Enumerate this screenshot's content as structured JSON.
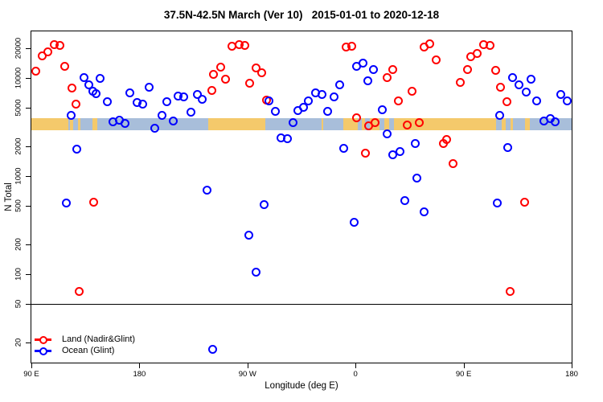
{
  "title": "37.5N-42.5N March (Ver 10)   2015-01-01 to 2020-12-18",
  "chart_data": {
    "type": "scatter",
    "title": "37.5N-42.5N March (Ver 10)   2015-01-01 to 2020-12-18",
    "xlabel": "Longitude (deg E)",
    "ylabel": "N Total",
    "xlim": [
      90,
      540
    ],
    "ylim": [
      12.5,
      30000
    ],
    "y_scale": "log",
    "grid": "off",
    "legend_position": "bottom-left",
    "x_ticks": [
      {
        "deg": 90,
        "label": "90 E"
      },
      {
        "deg": 180,
        "label": "180"
      },
      {
        "deg": 270,
        "label": "90 W"
      },
      {
        "deg": 360,
        "label": "0"
      },
      {
        "deg": 450,
        "label": "90 E"
      },
      {
        "deg": 540,
        "label": "180"
      }
    ],
    "y_ticks": [
      20,
      50,
      100,
      200,
      500,
      1000,
      2000,
      5000,
      10000,
      20000
    ],
    "series": [
      {
        "name": "Land (Nadir&Glint)",
        "color": "#ff0000",
        "marker": "open-circle",
        "points": [
          [
            94,
            11700
          ],
          [
            99,
            16800
          ],
          [
            104,
            18400
          ],
          [
            109,
            22000
          ],
          [
            114,
            21700
          ],
          [
            118,
            13100
          ],
          [
            124,
            7900
          ],
          [
            127,
            5400
          ],
          [
            130,
            67
          ],
          [
            142,
            540
          ],
          [
            240,
            7500
          ],
          [
            242,
            11000
          ],
          [
            248,
            12900
          ],
          [
            252,
            9800
          ],
          [
            257,
            21300
          ],
          [
            263,
            22000
          ],
          [
            268,
            21700
          ],
          [
            272,
            8800
          ],
          [
            277,
            12600
          ],
          [
            282,
            11400
          ],
          [
            286,
            6000
          ],
          [
            352,
            20600
          ],
          [
            357,
            21100
          ],
          [
            361,
            3900
          ],
          [
            368,
            1730
          ],
          [
            371,
            3250
          ],
          [
            376,
            3500
          ],
          [
            386,
            10100
          ],
          [
            391,
            12300
          ],
          [
            396,
            5900
          ],
          [
            403,
            3300
          ],
          [
            407,
            7400
          ],
          [
            413,
            3500
          ],
          [
            417,
            20600
          ],
          [
            422,
            22500
          ],
          [
            427,
            15400
          ],
          [
            433,
            2150
          ],
          [
            436,
            2380
          ],
          [
            441,
            1340
          ],
          [
            447,
            9100
          ],
          [
            453,
            12200
          ],
          [
            456,
            16600
          ],
          [
            461,
            17900
          ],
          [
            467,
            22000
          ],
          [
            472,
            21700
          ],
          [
            477,
            11900
          ],
          [
            481,
            8100
          ],
          [
            486,
            5700
          ],
          [
            489,
            67
          ],
          [
            501,
            540
          ]
        ]
      },
      {
        "name": "Ocean (Glint)",
        "color": "#0000ff",
        "marker": "open-circle",
        "points": [
          [
            119,
            530
          ],
          [
            123,
            4150
          ],
          [
            128,
            1900
          ],
          [
            134,
            10100
          ],
          [
            138,
            8550
          ],
          [
            141,
            7350
          ],
          [
            144,
            7000
          ],
          [
            147,
            9900
          ],
          [
            153,
            5750
          ],
          [
            158,
            3550
          ],
          [
            163,
            3700
          ],
          [
            168,
            3440
          ],
          [
            172,
            7100
          ],
          [
            178,
            5650
          ],
          [
            183,
            5400
          ],
          [
            188,
            8100
          ],
          [
            193,
            3100
          ],
          [
            199,
            4200
          ],
          [
            203,
            5700
          ],
          [
            208,
            3650
          ],
          [
            212,
            6550
          ],
          [
            217,
            6450
          ],
          [
            223,
            4500
          ],
          [
            228,
            6850
          ],
          [
            232,
            6050
          ],
          [
            236,
            720
          ],
          [
            241,
            17
          ],
          [
            271,
            250
          ],
          [
            277,
            105
          ],
          [
            284,
            510
          ],
          [
            288,
            5800
          ],
          [
            293,
            4560
          ],
          [
            298,
            2450
          ],
          [
            303,
            2430
          ],
          [
            308,
            3500
          ],
          [
            312,
            4700
          ],
          [
            317,
            5000
          ],
          [
            321,
            5800
          ],
          [
            327,
            7100
          ],
          [
            332,
            6850
          ],
          [
            337,
            4560
          ],
          [
            342,
            6450
          ],
          [
            347,
            8600
          ],
          [
            350,
            1920
          ],
          [
            359,
            340
          ],
          [
            361,
            13100
          ],
          [
            366,
            14300
          ],
          [
            370,
            9450
          ],
          [
            375,
            12300
          ],
          [
            382,
            4800
          ],
          [
            386,
            2700
          ],
          [
            391,
            1660
          ],
          [
            397,
            1790
          ],
          [
            401,
            560
          ],
          [
            410,
            2150
          ],
          [
            411,
            950
          ],
          [
            417,
            435
          ],
          [
            478,
            530
          ],
          [
            480,
            4200
          ],
          [
            487,
            1950
          ],
          [
            491,
            10100
          ],
          [
            496,
            8500
          ],
          [
            502,
            7250
          ],
          [
            506,
            9700
          ],
          [
            511,
            5800
          ],
          [
            517,
            3650
          ],
          [
            522,
            3850
          ],
          [
            526,
            3550
          ],
          [
            531,
            6850
          ],
          [
            536,
            5900
          ]
        ]
      }
    ]
  },
  "reference_line": {
    "value": 50,
    "color": "#000000"
  },
  "map_band": {
    "value_range": [
      2950,
      3900
    ],
    "land_color": "#f4c96b",
    "ocean_color": "#a8beda",
    "segments": [
      [
        90,
        121,
        "land"
      ],
      [
        121,
        122,
        "ocean"
      ],
      [
        122,
        125,
        "land"
      ],
      [
        125,
        129,
        "ocean"
      ],
      [
        129,
        131,
        "land"
      ],
      [
        131,
        141,
        "ocean"
      ],
      [
        141,
        145,
        "land"
      ],
      [
        145,
        237,
        "ocean"
      ],
      [
        237,
        285,
        "land"
      ],
      [
        285,
        332,
        "ocean"
      ],
      [
        332,
        333,
        "land"
      ],
      [
        333,
        350,
        "ocean"
      ],
      [
        350,
        362,
        "land"
      ],
      [
        362,
        365,
        "ocean"
      ],
      [
        365,
        368,
        "land"
      ],
      [
        368,
        372,
        "ocean"
      ],
      [
        372,
        380,
        "land"
      ],
      [
        380,
        384,
        "ocean"
      ],
      [
        384,
        388,
        "land"
      ],
      [
        388,
        392,
        "ocean"
      ],
      [
        392,
        477,
        "land"
      ],
      [
        477,
        482,
        "ocean"
      ],
      [
        482,
        485,
        "land"
      ],
      [
        485,
        489,
        "ocean"
      ],
      [
        489,
        491,
        "land"
      ],
      [
        491,
        501,
        "ocean"
      ],
      [
        501,
        505,
        "land"
      ],
      [
        505,
        540,
        "ocean"
      ]
    ]
  },
  "legend": {
    "items": [
      {
        "label": "Land (Nadir&Glint)",
        "color": "#ff0000"
      },
      {
        "label": "Ocean (Glint)",
        "color": "#0000ff"
      }
    ]
  }
}
